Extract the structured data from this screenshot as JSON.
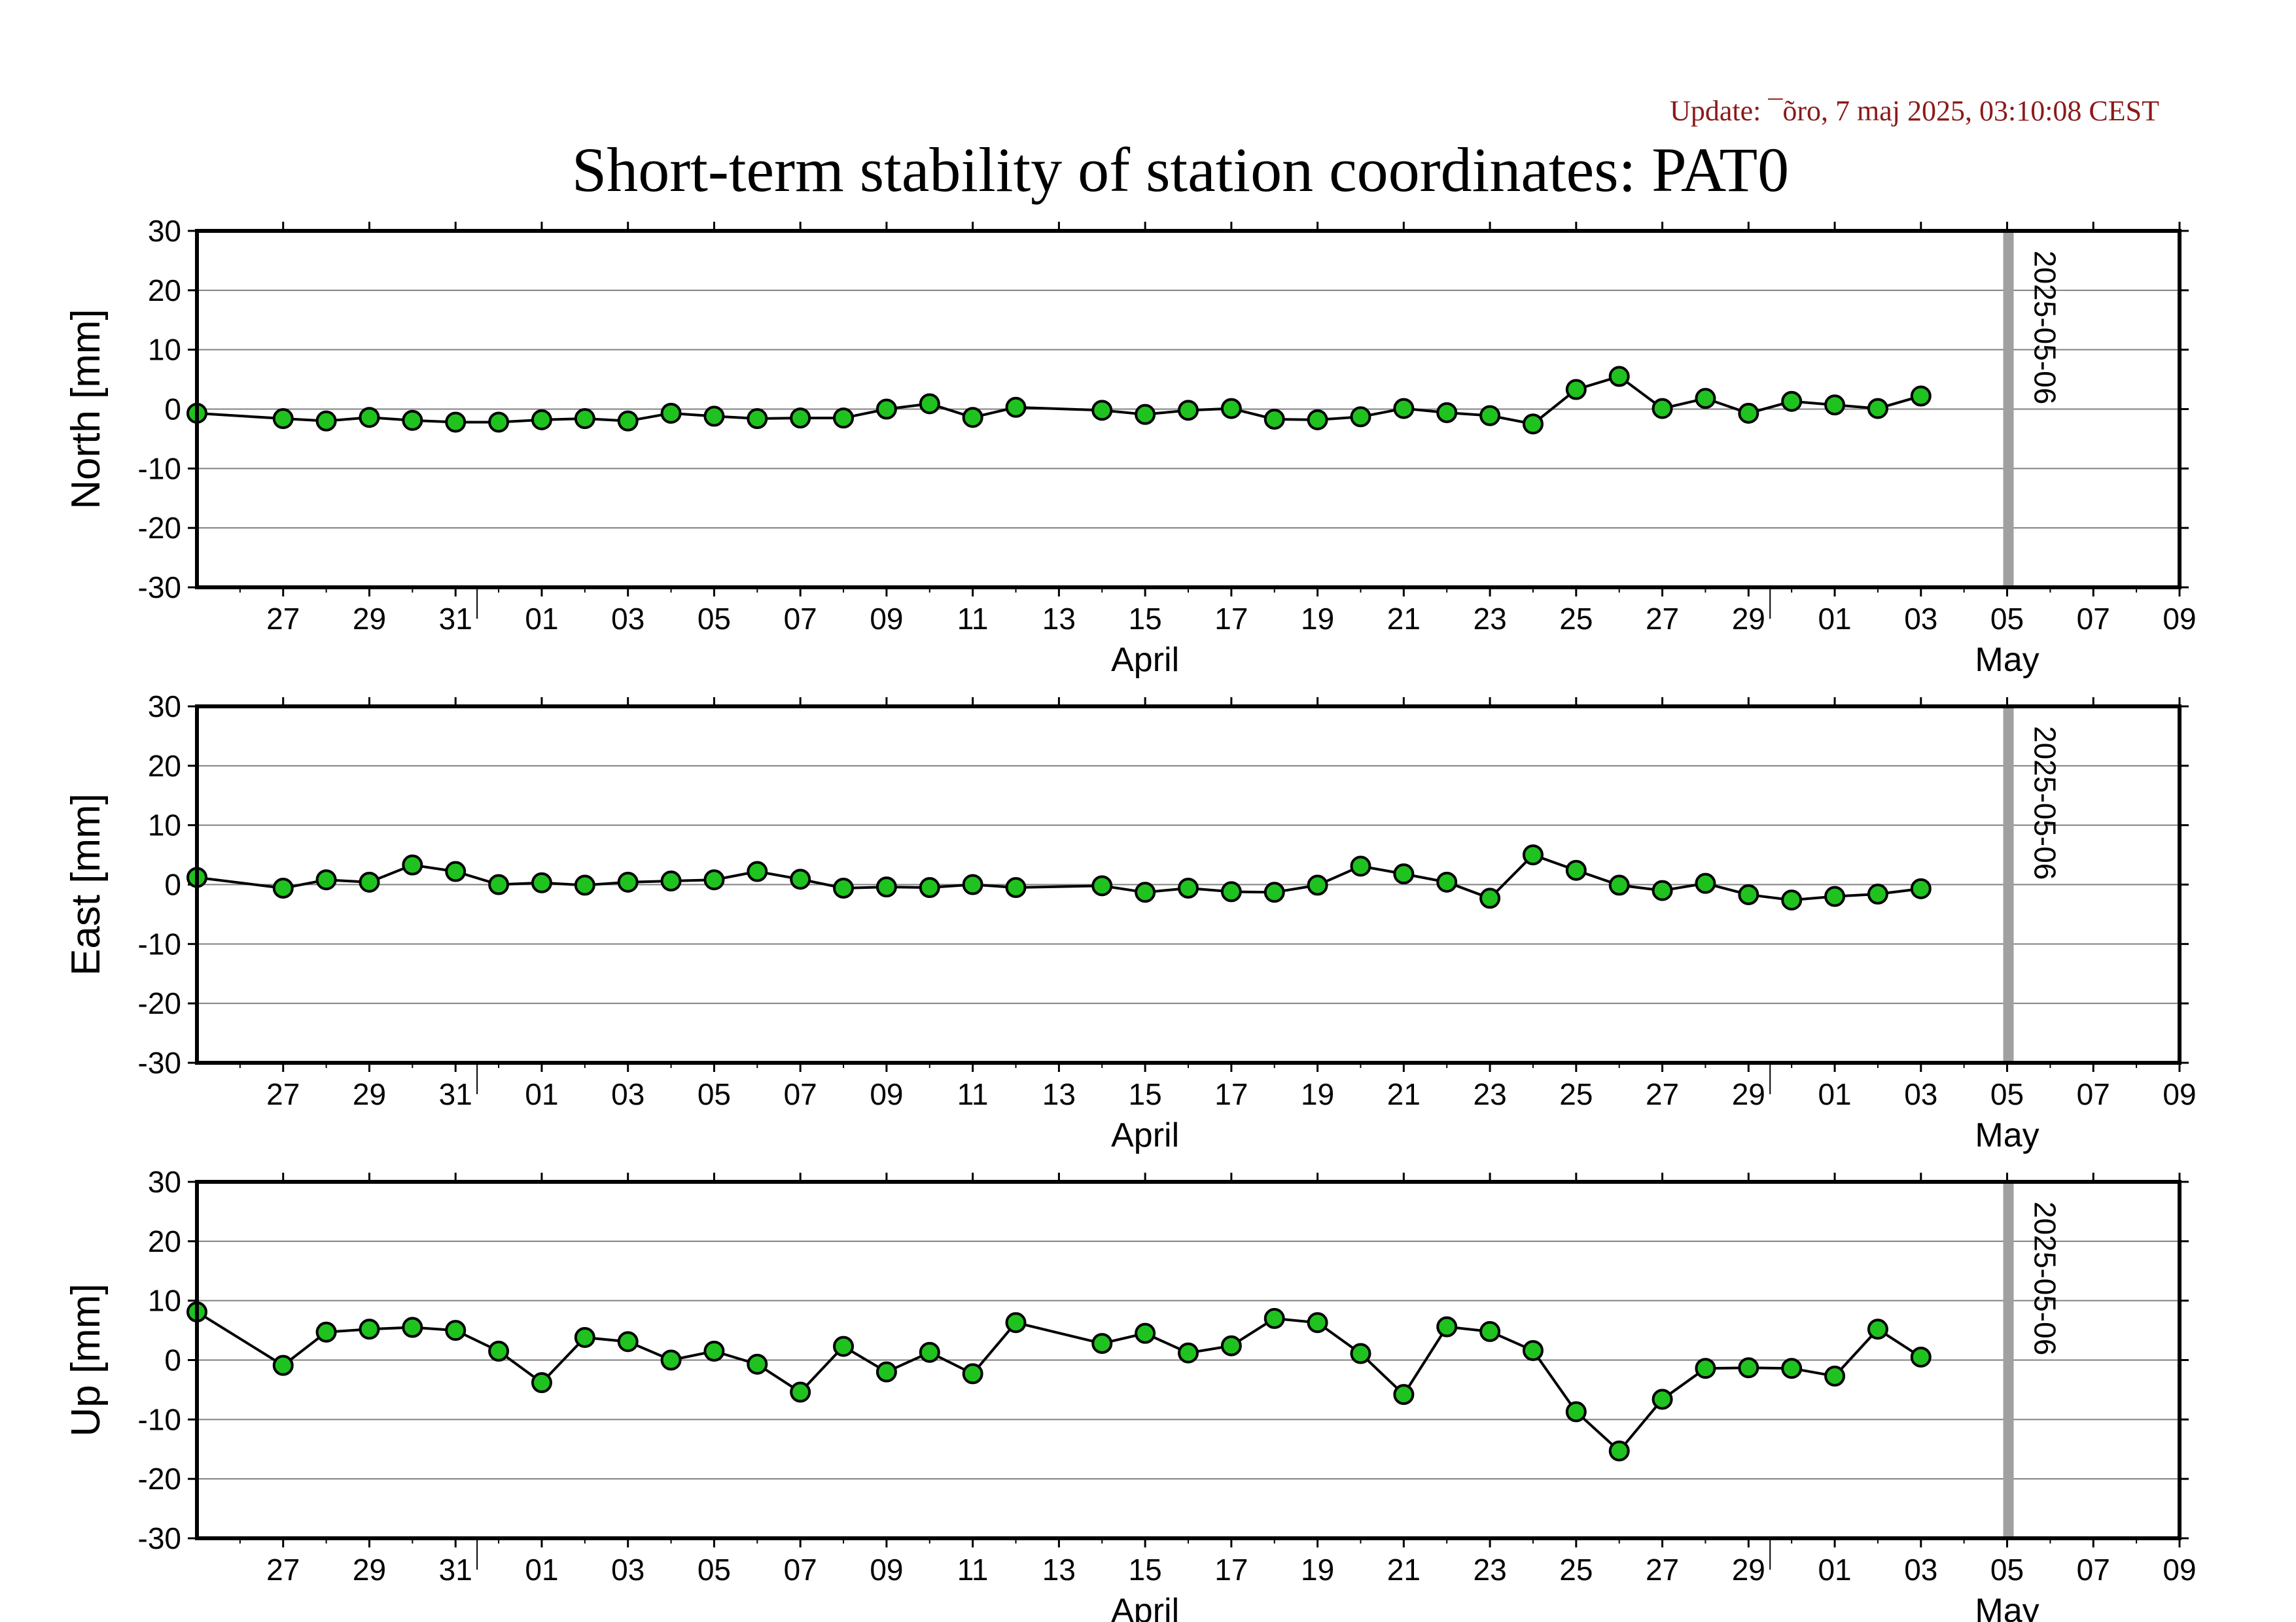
{
  "update_text": "Update: ¯õro, 7 maj 2025, 03:10:08 CEST",
  "title": "Short-term stability of station coordinates: PAT0",
  "colors": {
    "update": "#8b1a1a",
    "point_fill": "#1fc21f",
    "marker_line": "#a0a0a0",
    "grid": "#808080"
  },
  "chart_data": [
    {
      "type": "line",
      "ylabel": "North [mm]",
      "ylim": [
        -30,
        30
      ],
      "yticks": [
        30,
        20,
        10,
        0,
        -10,
        -20,
        -30
      ],
      "xlim": [
        "2025-03-25",
        "2025-05-10"
      ],
      "x_tick_labels": [
        "27",
        "29",
        "31",
        "01",
        "03",
        "05",
        "07",
        "09",
        "11",
        "13",
        "15",
        "17",
        "19",
        "21",
        "23",
        "25",
        "27",
        "29",
        "01",
        "03",
        "05",
        "07",
        "09"
      ],
      "month_labels": [
        "April",
        "May"
      ],
      "grid": true,
      "marker": {
        "date": "2025-05-06",
        "label": "2025-05-06"
      },
      "series": [
        {
          "x": [
            "2025-03-25",
            "2025-03-27",
            "2025-03-28",
            "2025-03-29",
            "2025-03-30",
            "2025-03-31",
            "2025-04-01",
            "2025-04-02",
            "2025-04-03",
            "2025-04-04",
            "2025-04-05",
            "2025-04-06",
            "2025-04-07",
            "2025-04-08",
            "2025-04-09",
            "2025-04-10",
            "2025-04-11",
            "2025-04-12",
            "2025-04-13",
            "2025-04-15",
            "2025-04-16",
            "2025-04-17",
            "2025-04-18",
            "2025-04-19",
            "2025-04-20",
            "2025-04-21",
            "2025-04-22",
            "2025-04-23",
            "2025-04-24",
            "2025-04-25",
            "2025-04-26",
            "2025-04-27",
            "2025-04-28",
            "2025-04-29",
            "2025-04-30",
            "2025-05-01",
            "2025-05-02",
            "2025-05-03",
            "2025-05-04"
          ],
          "y": [
            -0.7,
            -1.6,
            -2.0,
            -1.4,
            -1.9,
            -2.2,
            -2.2,
            -1.8,
            -1.6,
            -2.0,
            -0.7,
            -1.2,
            -1.6,
            -1.5,
            -1.5,
            0.0,
            0.9,
            -1.4,
            0.3,
            -0.2,
            -0.9,
            -0.2,
            0.1,
            -1.7,
            -1.8,
            -1.3,
            0.1,
            -0.6,
            -1.1,
            -2.5,
            3.3,
            5.5,
            0.1,
            1.8,
            -0.7,
            1.3,
            0.7,
            0.1,
            2.2
          ]
        }
      ]
    },
    {
      "type": "line",
      "ylabel": "East [mm]",
      "ylim": [
        -30,
        30
      ],
      "yticks": [
        30,
        20,
        10,
        0,
        -10,
        -20,
        -30
      ],
      "xlim": [
        "2025-03-25",
        "2025-05-10"
      ],
      "x_tick_labels": [
        "27",
        "29",
        "31",
        "01",
        "03",
        "05",
        "07",
        "09",
        "11",
        "13",
        "15",
        "17",
        "19",
        "21",
        "23",
        "25",
        "27",
        "29",
        "01",
        "03",
        "05",
        "07",
        "09"
      ],
      "month_labels": [
        "April",
        "May"
      ],
      "grid": true,
      "marker": {
        "date": "2025-05-06",
        "label": "2025-05-06"
      },
      "series": [
        {
          "x": [
            "2025-03-25",
            "2025-03-27",
            "2025-03-28",
            "2025-03-29",
            "2025-03-30",
            "2025-03-31",
            "2025-04-01",
            "2025-04-02",
            "2025-04-03",
            "2025-04-04",
            "2025-04-05",
            "2025-04-06",
            "2025-04-07",
            "2025-04-08",
            "2025-04-09",
            "2025-04-10",
            "2025-04-11",
            "2025-04-12",
            "2025-04-13",
            "2025-04-15",
            "2025-04-16",
            "2025-04-17",
            "2025-04-18",
            "2025-04-19",
            "2025-04-20",
            "2025-04-21",
            "2025-04-22",
            "2025-04-23",
            "2025-04-24",
            "2025-04-25",
            "2025-04-26",
            "2025-04-27",
            "2025-04-28",
            "2025-04-29",
            "2025-04-30",
            "2025-05-01",
            "2025-05-02",
            "2025-05-03",
            "2025-05-04"
          ],
          "y": [
            1.2,
            -0.6,
            0.8,
            0.4,
            3.3,
            2.2,
            0.0,
            0.3,
            -0.1,
            0.4,
            0.6,
            0.8,
            2.2,
            0.9,
            -0.6,
            -0.4,
            -0.5,
            0.0,
            -0.5,
            -0.2,
            -1.3,
            -0.6,
            -1.2,
            -1.3,
            -0.1,
            3.1,
            1.8,
            0.4,
            -2.3,
            5.0,
            2.4,
            -0.1,
            -1.0,
            0.2,
            -1.7,
            -2.6,
            -2.0,
            -1.6,
            -0.7
          ]
        }
      ]
    },
    {
      "type": "line",
      "ylabel": "Up [mm]",
      "ylim": [
        -30,
        30
      ],
      "yticks": [
        30,
        20,
        10,
        0,
        -10,
        -20,
        -30
      ],
      "xlim": [
        "2025-03-25",
        "2025-05-10"
      ],
      "x_tick_labels": [
        "27",
        "29",
        "31",
        "01",
        "03",
        "05",
        "07",
        "09",
        "11",
        "13",
        "15",
        "17",
        "19",
        "21",
        "23",
        "25",
        "27",
        "29",
        "01",
        "03",
        "05",
        "07",
        "09"
      ],
      "month_labels": [
        "April",
        "May"
      ],
      "grid": true,
      "marker": {
        "date": "2025-05-06",
        "label": "2025-05-06"
      },
      "series": [
        {
          "x": [
            "2025-03-25",
            "2025-03-27",
            "2025-03-28",
            "2025-03-29",
            "2025-03-30",
            "2025-03-31",
            "2025-04-01",
            "2025-04-02",
            "2025-04-03",
            "2025-04-04",
            "2025-04-05",
            "2025-04-06",
            "2025-04-07",
            "2025-04-08",
            "2025-04-09",
            "2025-04-10",
            "2025-04-11",
            "2025-04-12",
            "2025-04-13",
            "2025-04-15",
            "2025-04-16",
            "2025-04-17",
            "2025-04-18",
            "2025-04-19",
            "2025-04-20",
            "2025-04-21",
            "2025-04-22",
            "2025-04-23",
            "2025-04-24",
            "2025-04-25",
            "2025-04-26",
            "2025-04-27",
            "2025-04-28",
            "2025-04-29",
            "2025-04-30",
            "2025-05-01",
            "2025-05-02",
            "2025-05-03",
            "2025-05-04"
          ],
          "y": [
            8.1,
            -0.9,
            4.7,
            5.2,
            5.5,
            5.0,
            1.5,
            -3.8,
            3.8,
            3.1,
            0.0,
            1.5,
            -0.7,
            -5.4,
            2.3,
            -2.0,
            1.3,
            -2.3,
            6.3,
            2.8,
            4.5,
            1.2,
            2.4,
            7.0,
            6.3,
            1.1,
            -5.8,
            5.6,
            4.8,
            1.6,
            -8.7,
            -15.3,
            -6.6,
            -1.4,
            -1.3,
            -1.4,
            -2.7,
            5.2,
            0.5
          ]
        }
      ]
    }
  ]
}
